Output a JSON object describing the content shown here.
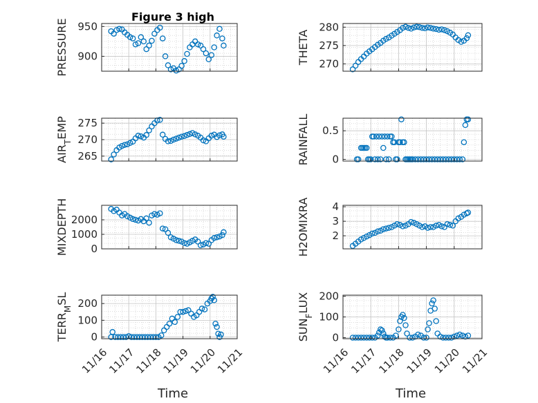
{
  "title": "Figure 3 high",
  "marker_color": "#0072BD",
  "chart_data": [
    {
      "type": "scatter",
      "title": "Figure 3 high",
      "ylabel": "PRESSURE",
      "xlabel": "",
      "xlim": [
        0,
        5
      ],
      "ylim": [
        875,
        955
      ],
      "yticks": [
        900,
        950
      ],
      "xticklabels": [],
      "grid": true,
      "x": [
        0.35,
        0.45,
        0.55,
        0.65,
        0.75,
        0.85,
        0.95,
        1.05,
        1.15,
        1.25,
        1.35,
        1.45,
        1.55,
        1.65,
        1.75,
        1.85,
        1.95,
        2.05,
        2.15,
        2.25,
        2.35,
        2.45,
        2.55,
        2.65,
        2.75,
        2.85,
        2.95,
        3.05,
        3.15,
        3.25,
        3.35,
        3.45,
        3.55,
        3.65,
        3.75,
        3.85,
        3.95,
        4.05,
        4.15,
        4.25,
        4.35,
        4.45,
        4.5
      ],
      "y": [
        942,
        938,
        944,
        946,
        945,
        940,
        936,
        932,
        930,
        920,
        922,
        932,
        925,
        912,
        918,
        926,
        938,
        944,
        948,
        930,
        900,
        885,
        878,
        880,
        876,
        878,
        884,
        892,
        904,
        915,
        920,
        925,
        920,
        918,
        912,
        905,
        895,
        902,
        915,
        935,
        946,
        930,
        918
      ]
    },
    {
      "type": "scatter",
      "ylabel": "THETA",
      "xlabel": "",
      "xlim": [
        0,
        5
      ],
      "ylim": [
        268,
        281
      ],
      "yticks": [
        270,
        275,
        280
      ],
      "xticklabels": [],
      "grid": true,
      "x": [
        0.35,
        0.45,
        0.55,
        0.65,
        0.75,
        0.85,
        0.95,
        1.05,
        1.15,
        1.25,
        1.35,
        1.45,
        1.55,
        1.65,
        1.75,
        1.85,
        1.95,
        2.05,
        2.15,
        2.25,
        2.35,
        2.45,
        2.55,
        2.65,
        2.75,
        2.85,
        2.95,
        3.05,
        3.15,
        3.25,
        3.35,
        3.45,
        3.55,
        3.65,
        3.75,
        3.85,
        3.95,
        4.05,
        4.15,
        4.25,
        4.35,
        4.45,
        4.5
      ],
      "y": [
        268.5,
        269.5,
        270.5,
        271.3,
        272,
        272.8,
        273.4,
        274,
        274.6,
        275.2,
        275.7,
        276.3,
        276.8,
        277.2,
        277.7,
        278.2,
        278.7,
        279.2,
        279.8,
        280.1,
        279.8,
        279.6,
        279.9,
        280.1,
        280,
        279.8,
        279.7,
        279.9,
        279.8,
        279.6,
        279.5,
        279.3,
        279.4,
        279.2,
        278.9,
        278.5,
        278,
        277.2,
        276.5,
        276,
        276.3,
        277,
        277.8
      ]
    },
    {
      "type": "scatter",
      "ylabel": "AIR_TEMP",
      "xlabel": "",
      "xlim": [
        0,
        5
      ],
      "ylim": [
        263.5,
        276.5
      ],
      "yticks": [
        265,
        270,
        275
      ],
      "xticklabels": [],
      "grid": true,
      "x": [
        0.35,
        0.45,
        0.55,
        0.65,
        0.75,
        0.85,
        0.95,
        1.05,
        1.15,
        1.25,
        1.35,
        1.45,
        1.55,
        1.65,
        1.75,
        1.85,
        1.95,
        2.05,
        2.15,
        2.25,
        2.35,
        2.45,
        2.55,
        2.65,
        2.75,
        2.85,
        2.95,
        3.05,
        3.15,
        3.25,
        3.35,
        3.45,
        3.55,
        3.65,
        3.75,
        3.85,
        3.95,
        4.05,
        4.15,
        4.25,
        4.35,
        4.45,
        4.5
      ],
      "y": [
        264,
        265.5,
        266.8,
        267.6,
        268.1,
        268.4,
        268.6,
        269,
        269.4,
        270.4,
        271.2,
        271,
        270.6,
        271.4,
        272.8,
        274,
        275,
        275.8,
        276,
        271.5,
        270.2,
        269.5,
        269.6,
        270,
        270.3,
        270.6,
        270.9,
        271.1,
        271.4,
        271.7,
        272,
        271.6,
        271.2,
        270.6,
        269.8,
        269.5,
        270.4,
        271.2,
        271.5,
        270.8,
        271.3,
        271.6,
        270.9
      ]
    },
    {
      "type": "scatter",
      "ylabel": "RAINFALL",
      "xlabel": "",
      "xlim": [
        0,
        5
      ],
      "ylim": [
        -0.03,
        0.72
      ],
      "yticks": [
        0,
        0.5
      ],
      "xticklabels": [],
      "grid": true,
      "x": [
        0.5,
        0.55,
        0.65,
        0.7,
        0.75,
        0.8,
        0.85,
        0.9,
        0.95,
        1.0,
        1.05,
        1.1,
        1.15,
        1.2,
        1.25,
        1.3,
        1.35,
        1.4,
        1.45,
        1.5,
        1.55,
        1.6,
        1.65,
        1.7,
        1.75,
        1.8,
        1.85,
        1.9,
        1.95,
        2.0,
        2.05,
        2.1,
        2.15,
        2.2,
        2.25,
        2.3,
        2.35,
        2.4,
        2.45,
        2.5,
        2.6,
        2.7,
        2.8,
        2.9,
        3.0,
        3.1,
        3.2,
        3.3,
        3.4,
        3.5,
        3.6,
        3.7,
        3.8,
        3.9,
        4.0,
        4.1,
        4.2,
        4.3,
        4.35,
        4.4,
        4.45,
        4.5
      ],
      "y": [
        0,
        0,
        0.2,
        0.2,
        0.2,
        0.2,
        0.2,
        0,
        0,
        0,
        0.4,
        0.4,
        0,
        0.4,
        0,
        0.4,
        0,
        0.4,
        0.2,
        0.4,
        0,
        0.4,
        0,
        0.4,
        0.4,
        0.3,
        0.3,
        0,
        0,
        0.3,
        0.3,
        0.7,
        0.3,
        0.3,
        0,
        0,
        0,
        0,
        0,
        0,
        0,
        0,
        0,
        0,
        0,
        0,
        0,
        0,
        0,
        0,
        0,
        0,
        0,
        0,
        0,
        0,
        0,
        0,
        0.3,
        0.6,
        0.7,
        0.7
      ]
    },
    {
      "type": "scatter",
      "ylabel": "MIXDEPTH",
      "xlabel": "",
      "xlim": [
        0,
        5
      ],
      "ylim": [
        0,
        3000
      ],
      "yticks": [
        0,
        1000,
        2000
      ],
      "xticklabels": [],
      "grid": true,
      "x": [
        0.35,
        0.45,
        0.55,
        0.65,
        0.75,
        0.85,
        0.95,
        1.05,
        1.15,
        1.25,
        1.35,
        1.45,
        1.55,
        1.65,
        1.75,
        1.85,
        1.95,
        2.05,
        2.15,
        2.25,
        2.35,
        2.45,
        2.55,
        2.65,
        2.75,
        2.85,
        2.95,
        3.05,
        3.15,
        3.25,
        3.35,
        3.45,
        3.55,
        3.65,
        3.75,
        3.85,
        3.95,
        4.05,
        4.15,
        4.25,
        4.35,
        4.45,
        4.5
      ],
      "y": [
        2750,
        2600,
        2700,
        2500,
        2300,
        2400,
        2250,
        2150,
        2050,
        2000,
        1950,
        2050,
        1900,
        2100,
        1800,
        2300,
        2400,
        2350,
        2450,
        1400,
        1350,
        1100,
        800,
        700,
        600,
        550,
        500,
        400,
        350,
        450,
        550,
        650,
        500,
        250,
        300,
        400,
        350,
        600,
        750,
        800,
        850,
        950,
        1150
      ]
    },
    {
      "type": "scatter",
      "ylabel": "H2OMIXRA",
      "xlabel": "",
      "xlim": [
        0,
        5
      ],
      "ylim": [
        1.1,
        4.1
      ],
      "yticks": [
        2,
        3,
        4
      ],
      "xticklabels": [],
      "grid": true,
      "x": [
        0.35,
        0.45,
        0.55,
        0.65,
        0.75,
        0.85,
        0.95,
        1.05,
        1.15,
        1.25,
        1.35,
        1.45,
        1.55,
        1.65,
        1.75,
        1.85,
        1.95,
        2.05,
        2.15,
        2.25,
        2.35,
        2.45,
        2.55,
        2.65,
        2.75,
        2.85,
        2.95,
        3.05,
        3.15,
        3.25,
        3.35,
        3.45,
        3.55,
        3.65,
        3.75,
        3.85,
        3.95,
        4.05,
        4.15,
        4.25,
        4.35,
        4.45,
        4.5
      ],
      "y": [
        1.3,
        1.45,
        1.6,
        1.75,
        1.85,
        1.95,
        2.05,
        2.15,
        2.2,
        2.3,
        2.35,
        2.45,
        2.5,
        2.55,
        2.6,
        2.7,
        2.8,
        2.75,
        2.65,
        2.7,
        2.8,
        2.95,
        2.9,
        2.8,
        2.7,
        2.6,
        2.65,
        2.55,
        2.6,
        2.6,
        2.7,
        2.75,
        2.65,
        2.6,
        2.8,
        2.75,
        2.7,
        3.0,
        3.2,
        3.3,
        3.45,
        3.55,
        3.6
      ]
    },
    {
      "type": "scatter",
      "ylabel": "TERR_MSL",
      "xlabel": "Time",
      "xlim": [
        0,
        5
      ],
      "ylim": [
        -10,
        250
      ],
      "yticks": [
        0,
        100,
        200
      ],
      "xticklabels": [
        "11/16",
        "11/17",
        "11/18",
        "11/19",
        "11/20",
        "11/21"
      ],
      "grid": true,
      "x": [
        0.35,
        0.4,
        0.5,
        0.6,
        0.7,
        0.8,
        0.9,
        1.0,
        1.1,
        1.2,
        1.3,
        1.4,
        1.5,
        1.6,
        1.7,
        1.8,
        1.9,
        2.0,
        2.1,
        2.2,
        2.3,
        2.4,
        2.5,
        2.6,
        2.7,
        2.8,
        2.9,
        3.0,
        3.1,
        3.2,
        3.3,
        3.4,
        3.5,
        3.6,
        3.7,
        3.8,
        3.9,
        4.0,
        4.05,
        4.1,
        4.15,
        4.2,
        4.25,
        4.3,
        4.35,
        4.4
      ],
      "y": [
        0,
        30,
        0,
        0,
        0,
        0,
        0,
        5,
        0,
        0,
        0,
        0,
        0,
        0,
        0,
        0,
        0,
        0,
        0,
        10,
        40,
        60,
        80,
        110,
        90,
        120,
        150,
        150,
        155,
        160,
        140,
        120,
        130,
        150,
        170,
        165,
        200,
        215,
        230,
        240,
        220,
        80,
        60,
        20,
        0,
        15
      ]
    },
    {
      "type": "scatter",
      "ylabel": "SUN_FLUX",
      "xlabel": "Time",
      "xlim": [
        0,
        5
      ],
      "ylim": [
        -5,
        205
      ],
      "yticks": [
        0,
        100,
        200
      ],
      "xticklabels": [
        "11/16",
        "11/17",
        "11/18",
        "11/19",
        "11/20",
        "11/21"
      ],
      "grid": true,
      "x": [
        0.35,
        0.45,
        0.55,
        0.65,
        0.75,
        0.85,
        0.95,
        1.05,
        1.15,
        1.25,
        1.3,
        1.35,
        1.4,
        1.45,
        1.5,
        1.55,
        1.6,
        1.7,
        1.8,
        1.9,
        2.0,
        2.05,
        2.1,
        2.15,
        2.2,
        2.25,
        2.3,
        2.4,
        2.5,
        2.6,
        2.7,
        2.8,
        2.9,
        3.0,
        3.05,
        3.1,
        3.15,
        3.2,
        3.25,
        3.3,
        3.35,
        3.4,
        3.5,
        3.6,
        3.7,
        3.8,
        3.9,
        4.0,
        4.1,
        4.2,
        4.3,
        4.4,
        4.5
      ],
      "y": [
        0,
        0,
        0,
        0,
        0,
        0,
        0,
        0,
        0,
        10,
        25,
        40,
        35,
        20,
        5,
        0,
        0,
        0,
        0,
        10,
        40,
        80,
        100,
        110,
        95,
        60,
        20,
        0,
        0,
        5,
        15,
        10,
        0,
        0,
        40,
        70,
        130,
        165,
        180,
        140,
        80,
        20,
        5,
        0,
        0,
        0,
        0,
        5,
        10,
        15,
        10,
        5,
        10
      ]
    }
  ]
}
